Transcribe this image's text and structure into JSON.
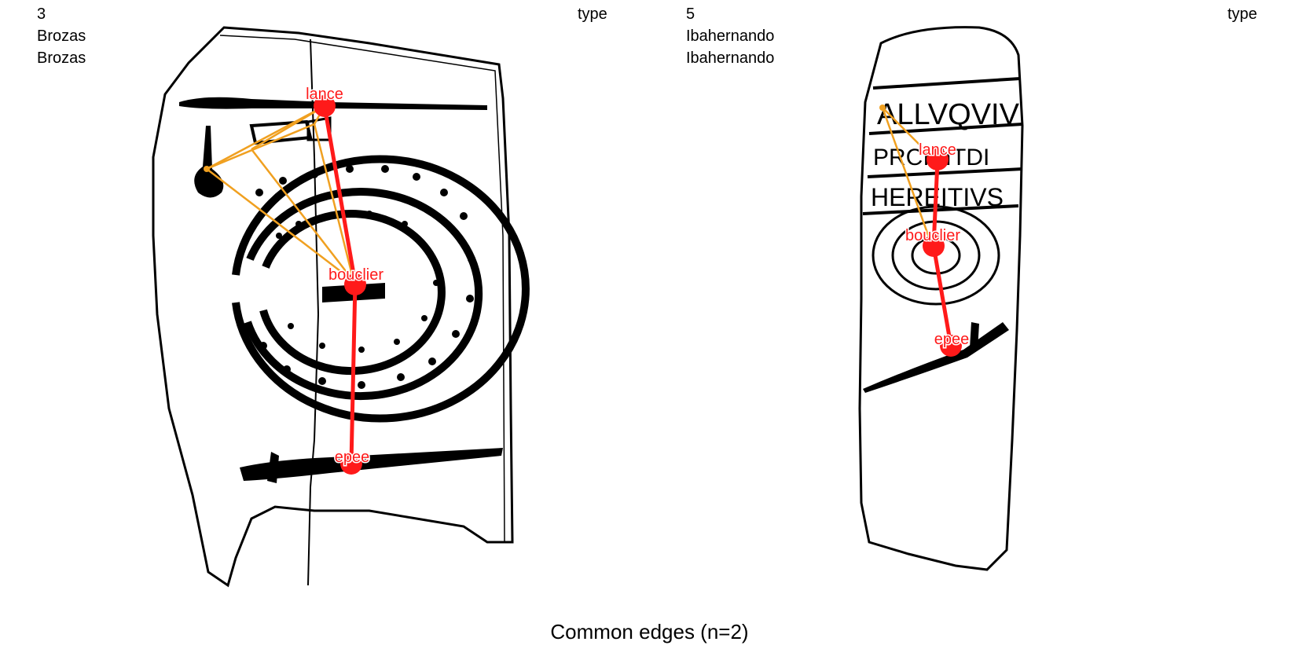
{
  "panels": [
    {
      "id": "3",
      "name": "Brozas",
      "site": "Brozas",
      "type_label": "type"
    },
    {
      "id": "5",
      "name": "Ibahernando",
      "site": "Ibahernando",
      "type_label": "type"
    }
  ],
  "nodes": {
    "lance": "lance",
    "bouclier": "bouclier",
    "epee": "epee"
  },
  "inscription": {
    "line1": "ALLVQVIV",
    "line2": "PRCIEITDI",
    "line3": "HEREITIVS"
  },
  "footer": "Common edges (n=2)",
  "colors": {
    "common_edge": "#ff1a1a",
    "other_edge": "#f0a020",
    "drawing": "#000000"
  }
}
